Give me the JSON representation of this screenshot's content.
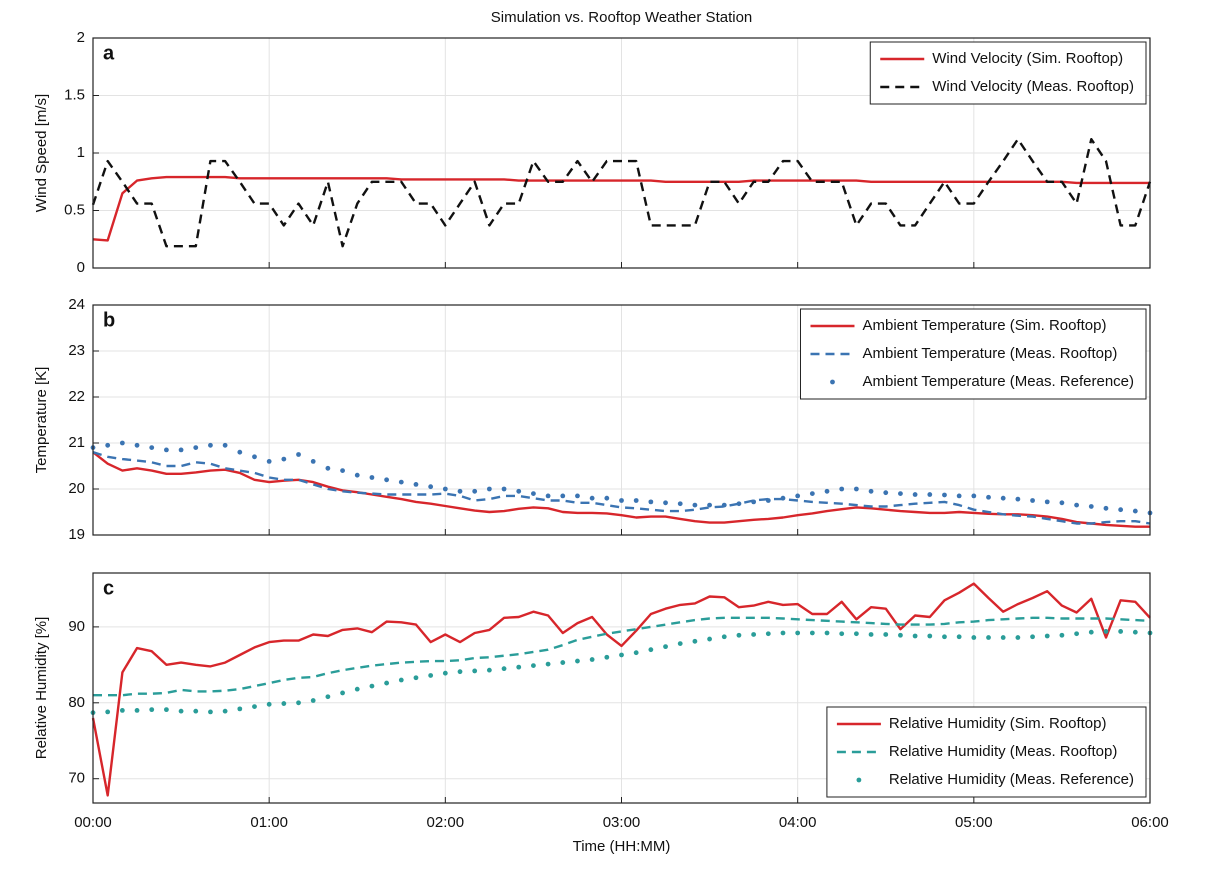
{
  "chart_data": [
    {
      "type": "line",
      "title": "Simulation vs. Rooftop Weather Station",
      "panel_label": "a",
      "ylabel": "Wind Speed [m/s]",
      "xlim": [
        0,
        360
      ],
      "xticks": [
        0,
        60,
        120,
        180,
        240,
        300,
        360
      ],
      "xtick_labels": false,
      "ylim": [
        0,
        2
      ],
      "yticks": [
        0,
        0.5,
        1,
        1.5,
        2
      ],
      "grid": true,
      "legend": "upper right",
      "x": [
        0,
        5,
        10,
        15,
        20,
        25,
        30,
        35,
        40,
        45,
        50,
        55,
        60,
        65,
        70,
        75,
        80,
        85,
        90,
        95,
        100,
        105,
        110,
        115,
        120,
        125,
        130,
        135,
        140,
        145,
        150,
        155,
        160,
        165,
        170,
        175,
        180,
        185,
        190,
        195,
        200,
        205,
        210,
        215,
        220,
        225,
        230,
        235,
        240,
        245,
        250,
        255,
        260,
        265,
        270,
        275,
        280,
        285,
        290,
        295,
        300,
        305,
        310,
        315,
        320,
        325,
        330,
        335,
        340,
        345,
        350,
        355,
        360
      ],
      "series": [
        {
          "name": "Wind Velocity (Sim. Rooftop)",
          "color": "#d7262b",
          "style": "solid",
          "values": [
            0.25,
            0.24,
            0.65,
            0.76,
            0.78,
            0.79,
            0.79,
            0.79,
            0.79,
            0.79,
            0.78,
            0.78,
            0.78,
            0.78,
            0.78,
            0.78,
            0.78,
            0.78,
            0.78,
            0.78,
            0.78,
            0.77,
            0.77,
            0.77,
            0.77,
            0.77,
            0.77,
            0.77,
            0.77,
            0.76,
            0.76,
            0.76,
            0.76,
            0.76,
            0.76,
            0.76,
            0.76,
            0.76,
            0.76,
            0.75,
            0.75,
            0.75,
            0.75,
            0.75,
            0.75,
            0.76,
            0.76,
            0.76,
            0.76,
            0.76,
            0.76,
            0.76,
            0.76,
            0.75,
            0.75,
            0.75,
            0.75,
            0.75,
            0.75,
            0.75,
            0.75,
            0.75,
            0.75,
            0.75,
            0.75,
            0.75,
            0.75,
            0.74,
            0.74,
            0.74,
            0.74,
            0.74,
            0.74
          ]
        },
        {
          "name": "Wind Velocity (Meas. Rooftop)",
          "color": "#111111",
          "style": "dashed",
          "values": [
            0.55,
            0.93,
            0.75,
            0.56,
            0.56,
            0.19,
            0.19,
            0.19,
            0.93,
            0.93,
            0.75,
            0.56,
            0.56,
            0.37,
            0.56,
            0.37,
            0.75,
            0.19,
            0.56,
            0.75,
            0.75,
            0.75,
            0.56,
            0.56,
            0.37,
            0.56,
            0.75,
            0.37,
            0.56,
            0.56,
            0.93,
            0.75,
            0.75,
            0.93,
            0.75,
            0.93,
            0.93,
            0.93,
            0.37,
            0.37,
            0.37,
            0.37,
            0.75,
            0.75,
            0.56,
            0.75,
            0.75,
            0.93,
            0.93,
            0.75,
            0.75,
            0.75,
            0.37,
            0.56,
            0.56,
            0.37,
            0.37,
            0.56,
            0.75,
            0.56,
            0.56,
            0.75,
            0.93,
            1.12,
            0.93,
            0.75,
            0.75,
            0.56,
            1.12,
            0.93,
            0.37,
            0.37,
            0.75
          ]
        }
      ]
    },
    {
      "type": "line",
      "panel_label": "b",
      "ylabel": "Temperature [K]",
      "xlim": [
        0,
        360
      ],
      "xticks": [
        0,
        60,
        120,
        180,
        240,
        300,
        360
      ],
      "xtick_labels": false,
      "ylim": [
        19,
        24
      ],
      "yticks": [
        19,
        20,
        21,
        22,
        23,
        24
      ],
      "grid": true,
      "legend": "upper right",
      "x": [
        0,
        5,
        10,
        15,
        20,
        25,
        30,
        35,
        40,
        45,
        50,
        55,
        60,
        65,
        70,
        75,
        80,
        85,
        90,
        95,
        100,
        105,
        110,
        115,
        120,
        125,
        130,
        135,
        140,
        145,
        150,
        155,
        160,
        165,
        170,
        175,
        180,
        185,
        190,
        195,
        200,
        205,
        210,
        215,
        220,
        225,
        230,
        235,
        240,
        245,
        250,
        255,
        260,
        265,
        270,
        275,
        280,
        285,
        290,
        295,
        300,
        305,
        310,
        315,
        320,
        325,
        330,
        335,
        340,
        345,
        350,
        355,
        360
      ],
      "series": [
        {
          "name": "Ambient Temperature (Sim. Rooftop)",
          "color": "#d7262b",
          "style": "solid",
          "values": [
            20.8,
            20.55,
            20.4,
            20.45,
            20.4,
            20.33,
            20.33,
            20.36,
            20.4,
            20.42,
            20.35,
            20.2,
            20.15,
            20.18,
            20.2,
            20.15,
            20.05,
            19.97,
            19.93,
            19.88,
            19.83,
            19.78,
            19.72,
            19.68,
            19.63,
            19.58,
            19.53,
            19.5,
            19.52,
            19.57,
            19.6,
            19.58,
            19.5,
            19.48,
            19.48,
            19.47,
            19.43,
            19.38,
            19.4,
            19.4,
            19.35,
            19.3,
            19.27,
            19.27,
            19.3,
            19.33,
            19.35,
            19.38,
            19.43,
            19.47,
            19.52,
            19.56,
            19.6,
            19.58,
            19.55,
            19.52,
            19.5,
            19.48,
            19.48,
            19.5,
            19.48,
            19.46,
            19.45,
            19.45,
            19.43,
            19.4,
            19.35,
            19.28,
            19.25,
            19.22,
            19.2,
            19.18,
            19.18
          ]
        },
        {
          "name": "Ambient Temperature (Meas. Rooftop)",
          "color": "#3b74b2",
          "style": "dashed",
          "values": [
            20.8,
            20.7,
            20.65,
            20.62,
            20.58,
            20.5,
            20.5,
            20.58,
            20.55,
            20.45,
            20.4,
            20.35,
            20.25,
            20.2,
            20.2,
            20.1,
            20.0,
            19.95,
            19.92,
            19.9,
            19.88,
            19.88,
            19.88,
            19.88,
            19.9,
            19.85,
            19.75,
            19.78,
            19.85,
            19.85,
            19.8,
            19.75,
            19.75,
            19.7,
            19.7,
            19.65,
            19.6,
            19.58,
            19.55,
            19.52,
            19.52,
            19.55,
            19.6,
            19.62,
            19.68,
            19.75,
            19.78,
            19.78,
            19.75,
            19.72,
            19.7,
            19.68,
            19.65,
            19.62,
            19.62,
            19.65,
            19.68,
            19.7,
            19.72,
            19.65,
            19.55,
            19.5,
            19.45,
            19.42,
            19.4,
            19.35,
            19.3,
            19.25,
            19.25,
            19.28,
            19.3,
            19.3,
            19.25
          ]
        },
        {
          "name": "Ambient Temperature (Meas. Reference)",
          "color": "#3b74b2",
          "style": "dotted",
          "values": [
            20.9,
            20.95,
            21.0,
            20.95,
            20.9,
            20.85,
            20.85,
            20.9,
            20.95,
            20.95,
            20.8,
            20.7,
            20.6,
            20.65,
            20.75,
            20.6,
            20.45,
            20.4,
            20.3,
            20.25,
            20.2,
            20.15,
            20.1,
            20.05,
            20.0,
            19.95,
            19.95,
            20.0,
            20.0,
            19.95,
            19.9,
            19.85,
            19.85,
            19.85,
            19.8,
            19.8,
            19.75,
            19.75,
            19.72,
            19.7,
            19.68,
            19.65,
            19.65,
            19.65,
            19.68,
            19.72,
            19.75,
            19.8,
            19.85,
            19.9,
            19.95,
            20.0,
            20.0,
            19.95,
            19.92,
            19.9,
            19.88,
            19.88,
            19.87,
            19.85,
            19.85,
            19.82,
            19.8,
            19.78,
            19.75,
            19.72,
            19.7,
            19.65,
            19.62,
            19.58,
            19.55,
            19.52,
            19.48
          ]
        }
      ]
    },
    {
      "type": "line",
      "panel_label": "c",
      "ylabel": "Relative Humidity [%]",
      "xlabel": "Time (HH:MM)",
      "xlim": [
        0,
        360
      ],
      "xticks": [
        {
          "value": 0,
          "label": "00:00"
        },
        {
          "value": 60,
          "label": "01:00"
        },
        {
          "value": 120,
          "label": "02:00"
        },
        {
          "value": 180,
          "label": "03:00"
        },
        {
          "value": 240,
          "label": "04:00"
        },
        {
          "value": 300,
          "label": "05:00"
        },
        {
          "value": 360,
          "label": "06:00"
        }
      ],
      "xtick_labels": true,
      "ylim": [
        66.8,
        97.1
      ],
      "yticks": [
        70,
        80,
        90
      ],
      "grid": true,
      "legend": "lower right",
      "x": [
        0,
        5,
        10,
        15,
        20,
        25,
        30,
        35,
        40,
        45,
        50,
        55,
        60,
        65,
        70,
        75,
        80,
        85,
        90,
        95,
        100,
        105,
        110,
        115,
        120,
        125,
        130,
        135,
        140,
        145,
        150,
        155,
        160,
        165,
        170,
        175,
        180,
        185,
        190,
        195,
        200,
        205,
        210,
        215,
        220,
        225,
        230,
        235,
        240,
        245,
        250,
        255,
        260,
        265,
        270,
        275,
        280,
        285,
        290,
        295,
        300,
        305,
        310,
        315,
        320,
        325,
        330,
        335,
        340,
        345,
        350,
        355,
        360
      ],
      "series": [
        {
          "name": "Relative Humidity (Sim. Rooftop)",
          "color": "#d7262b",
          "style": "solid",
          "values": [
            78,
            67.8,
            84,
            87.2,
            86.8,
            85,
            85.3,
            85,
            84.8,
            85.3,
            86.3,
            87.3,
            88,
            88.2,
            88.2,
            89,
            88.8,
            89.6,
            89.8,
            89.3,
            90.7,
            90.6,
            90.3,
            88,
            89,
            88,
            89.2,
            89.6,
            91.2,
            91.3,
            92,
            91.5,
            89.2,
            90.5,
            91.3,
            89,
            87.5,
            89.5,
            91.7,
            92.4,
            92.9,
            93.1,
            94,
            93.9,
            92.6,
            92.8,
            93.3,
            92.9,
            93,
            91.7,
            91.7,
            93.3,
            91,
            92.6,
            92.4,
            89.7,
            91.5,
            91.3,
            93.5,
            94.5,
            95.7,
            93.8,
            92,
            93,
            93.8,
            94.7,
            92.8,
            91.9,
            93.7,
            88.6,
            93.5,
            93.3,
            91.2
          ]
        },
        {
          "name": "Relative Humidity (Meas. Rooftop)",
          "color": "#2a9d99",
          "style": "dashed",
          "values": [
            81,
            81,
            81,
            81.2,
            81.2,
            81.3,
            81.7,
            81.5,
            81.5,
            81.6,
            81.8,
            82.2,
            82.6,
            83,
            83.3,
            83.4,
            83.9,
            84.3,
            84.6,
            84.9,
            85.1,
            85.3,
            85.4,
            85.5,
            85.5,
            85.6,
            85.9,
            86,
            86.2,
            86.4,
            86.7,
            87,
            87.6,
            88.3,
            88.7,
            89.1,
            89.4,
            89.7,
            90,
            90.3,
            90.6,
            90.9,
            91.1,
            91.2,
            91.2,
            91.2,
            91.2,
            91.1,
            91,
            90.9,
            90.8,
            90.7,
            90.6,
            90.5,
            90.4,
            90.3,
            90.3,
            90.3,
            90.4,
            90.6,
            90.7,
            90.9,
            91,
            91.1,
            91.2,
            91.2,
            91.1,
            91.1,
            91.1,
            91.1,
            91,
            90.9,
            90.8
          ]
        },
        {
          "name": "Relative Humidity (Meas. Reference)",
          "color": "#2a9d99",
          "style": "dotted",
          "values": [
            78.7,
            78.8,
            79,
            79,
            79.1,
            79.1,
            78.9,
            78.9,
            78.8,
            78.9,
            79.2,
            79.5,
            79.8,
            79.9,
            80,
            80.3,
            80.8,
            81.3,
            81.8,
            82.2,
            82.6,
            83,
            83.3,
            83.6,
            83.9,
            84.1,
            84.2,
            84.3,
            84.5,
            84.7,
            84.9,
            85.1,
            85.3,
            85.5,
            85.7,
            86,
            86.3,
            86.6,
            87,
            87.4,
            87.8,
            88.1,
            88.4,
            88.7,
            88.9,
            89,
            89.1,
            89.2,
            89.2,
            89.2,
            89.2,
            89.1,
            89.1,
            89,
            89,
            88.9,
            88.8,
            88.8,
            88.7,
            88.7,
            88.6,
            88.6,
            88.6,
            88.6,
            88.7,
            88.8,
            88.9,
            89.1,
            89.3,
            89.4,
            89.4,
            89.3,
            89.2
          ]
        }
      ]
    }
  ]
}
